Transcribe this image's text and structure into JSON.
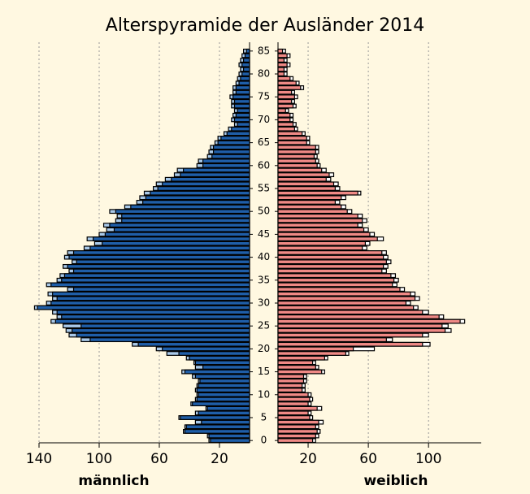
{
  "chart_data": {
    "type": "pyramid",
    "title": "Alterspyramide der Ausländer 2014",
    "categories": [
      0,
      null,
      null,
      null,
      null,
      5,
      null,
      null,
      null,
      null,
      10,
      null,
      null,
      null,
      null,
      15,
      null,
      null,
      null,
      null,
      20,
      null,
      null,
      null,
      null,
      25,
      null,
      null,
      null,
      null,
      30,
      null,
      null,
      null,
      null,
      35,
      null,
      null,
      null,
      null,
      40,
      null,
      null,
      null,
      null,
      45,
      null,
      null,
      null,
      null,
      50,
      null,
      null,
      null,
      null,
      55,
      null,
      null,
      null,
      null,
      60,
      null,
      null,
      null,
      null,
      65,
      null,
      null,
      null,
      null,
      70,
      null,
      null,
      null,
      null,
      75,
      null,
      null,
      null,
      null,
      80,
      null,
      null,
      null,
      null,
      85
    ],
    "left": {
      "label": "männlich",
      "xlim": [
        0,
        140
      ],
      "xticks": [
        20,
        60,
        100,
        140
      ],
      "series": [
        {
          "color": "#a9c9e9",
          "values": [
            27,
            28,
            44,
            43,
            36,
            47,
            36,
            29,
            39,
            36,
            35,
            36,
            35,
            34,
            38,
            45,
            36,
            37,
            42,
            55,
            62,
            78,
            112,
            120,
            122,
            124,
            132,
            128,
            131,
            143,
            135,
            131,
            134,
            121,
            135,
            128,
            126,
            120,
            124,
            118,
            123,
            121,
            110,
            103,
            108,
            100,
            95,
            97,
            89,
            88,
            93,
            83,
            75,
            73,
            70,
            64,
            62,
            56,
            50,
            48,
            35,
            34,
            28,
            27,
            26,
            23,
            21,
            17,
            14,
            10,
            12,
            11,
            10,
            12,
            12,
            13,
            11,
            11,
            9,
            8,
            7,
            6,
            7,
            6,
            5,
            4
          ]
        },
        {
          "color": "#1f5ea8",
          "values": [
            26,
            27,
            43,
            42,
            32,
            46,
            34,
            28,
            38,
            35,
            34,
            35,
            34,
            33,
            36,
            43,
            31,
            36,
            40,
            47,
            58,
            74,
            106,
            115,
            118,
            112,
            129,
            125,
            128,
            141,
            132,
            128,
            131,
            117,
            132,
            125,
            123,
            117,
            121,
            115,
            120,
            117,
            106,
            98,
            104,
            96,
            90,
            93,
            85,
            85,
            89,
            79,
            71,
            69,
            66,
            61,
            58,
            52,
            46,
            44,
            31,
            31,
            25,
            24,
            24,
            21,
            19,
            15,
            12,
            8,
            10,
            9,
            8,
            10,
            10,
            11,
            9,
            9,
            7,
            6,
            5,
            4,
            5,
            4,
            3,
            2
          ]
        }
      ]
    },
    "right": {
      "label": "weiblich",
      "xlim": [
        0,
        135
      ],
      "xticks": [
        20,
        60,
        100
      ],
      "series": [
        {
          "color": "#ffffff",
          "values": [
            25,
            27,
            28,
            27,
            30,
            23,
            22,
            29,
            22,
            23,
            22,
            18,
            18,
            19,
            19,
            31,
            27,
            25,
            33,
            47,
            64,
            101,
            76,
            100,
            115,
            113,
            124,
            110,
            100,
            93,
            88,
            94,
            91,
            84,
            79,
            80,
            78,
            72,
            73,
            75,
            73,
            72,
            59,
            61,
            70,
            64,
            60,
            56,
            59,
            56,
            49,
            45,
            41,
            45,
            55,
            41,
            40,
            35,
            37,
            32,
            28,
            27,
            26,
            27,
            27,
            21,
            21,
            18,
            13,
            12,
            10,
            10,
            7,
            12,
            11,
            13,
            11,
            17,
            14,
            10,
            6,
            6,
            8,
            6,
            8,
            5
          ]
        },
        {
          "color": "#ef8985",
          "values": [
            23,
            25,
            26,
            25,
            27,
            21,
            20,
            26,
            20,
            21,
            20,
            16,
            16,
            17,
            17,
            29,
            25,
            23,
            31,
            45,
            50,
            96,
            72,
            96,
            111,
            109,
            121,
            107,
            96,
            90,
            85,
            91,
            88,
            81,
            76,
            77,
            75,
            69,
            70,
            72,
            70,
            69,
            56,
            58,
            66,
            61,
            57,
            53,
            56,
            53,
            46,
            42,
            38,
            42,
            53,
            38,
            37,
            32,
            34,
            29,
            26,
            25,
            24,
            25,
            25,
            19,
            19,
            16,
            11,
            10,
            8,
            8,
            5,
            10,
            9,
            11,
            9,
            15,
            12,
            8,
            4,
            4,
            6,
            4,
            6,
            3
          ]
        }
      ]
    },
    "grid": true
  }
}
